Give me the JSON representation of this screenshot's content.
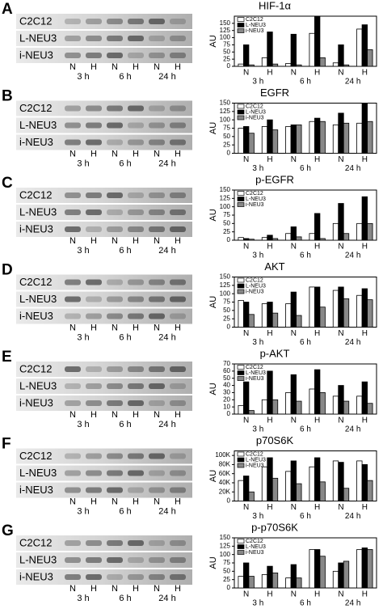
{
  "chart_data": [
    {
      "type": "bar",
      "panel": "A",
      "title": "HIF-1α",
      "ylabel": "AU",
      "blot_labels": [
        "C2C12",
        "L-NEU3",
        "i-NEU3"
      ],
      "categories": [
        "N",
        "H",
        "N",
        "H",
        "N",
        "H"
      ],
      "groups": [
        "3 h",
        "6 h",
        "24 h"
      ],
      "series": [
        {
          "name": "C2C12",
          "color": "#ffffff",
          "values": [
            8,
            30,
            10,
            115,
            12,
            130
          ]
        },
        {
          "name": "L-NEU3",
          "color": "#000000",
          "values": [
            75,
            120,
            112,
            175,
            75,
            145
          ]
        },
        {
          "name": "i-NEU3",
          "color": "#888888",
          "values": [
            5,
            8,
            5,
            30,
            5,
            58
          ]
        }
      ],
      "ylim": [
        0,
        175
      ],
      "yticks": [
        0,
        25,
        50,
        75,
        100,
        125,
        150
      ]
    },
    {
      "type": "bar",
      "panel": "B",
      "title": "EGFR",
      "ylabel": "AU",
      "blot_labels": [
        "C2C12",
        "L-NEU3",
        "i-NEU3"
      ],
      "categories": [
        "N",
        "H",
        "N",
        "H",
        "N",
        "H"
      ],
      "groups": [
        "3 h",
        "6 h",
        "24 h"
      ],
      "series": [
        {
          "name": "C2C12",
          "color": "#ffffff",
          "values": [
            75,
            80,
            80,
            95,
            85,
            90
          ]
        },
        {
          "name": "L-NEU3",
          "color": "#000000",
          "values": [
            80,
            100,
            85,
            105,
            120,
            150
          ]
        },
        {
          "name": "i-NEU3",
          "color": "#888888",
          "values": [
            60,
            70,
            85,
            95,
            90,
            95
          ]
        }
      ],
      "ylim": [
        0,
        150
      ],
      "yticks": [
        0,
        25,
        50,
        75,
        100,
        125,
        150
      ]
    },
    {
      "type": "bar",
      "panel": "C",
      "title": "p-EGFR",
      "ylabel": "AU",
      "blot_labels": [
        "C2C12",
        "L-NEU3",
        "i-NEU3"
      ],
      "categories": [
        "N",
        "H",
        "N",
        "H",
        "N",
        "H"
      ],
      "groups": [
        "3 h",
        "6 h",
        "24 h"
      ],
      "series": [
        {
          "name": "C2C12",
          "color": "#ffffff",
          "values": [
            8,
            8,
            20,
            20,
            50,
            50
          ]
        },
        {
          "name": "L-NEU3",
          "color": "#000000",
          "values": [
            5,
            15,
            40,
            80,
            110,
            130
          ]
        },
        {
          "name": "i-NEU3",
          "color": "#888888",
          "values": [
            3,
            5,
            10,
            5,
            20,
            50
          ]
        }
      ],
      "ylim": [
        0,
        150
      ],
      "yticks": [
        0,
        25,
        50,
        75,
        100,
        125,
        150
      ]
    },
    {
      "type": "bar",
      "panel": "D",
      "title": "AKT",
      "ylabel": "AU",
      "blot_labels": [
        "C2C12",
        "L-NEU3",
        "i-NEU3"
      ],
      "categories": [
        "N",
        "H",
        "N",
        "H",
        "N",
        "H"
      ],
      "groups": [
        "3 h",
        "6 h",
        "24 h"
      ],
      "series": [
        {
          "name": "C2C12",
          "color": "#ffffff",
          "values": [
            80,
            70,
            70,
            120,
            110,
            95
          ]
        },
        {
          "name": "L-NEU3",
          "color": "#000000",
          "values": [
            75,
            75,
            105,
            120,
            120,
            115
          ]
        },
        {
          "name": "i-NEU3",
          "color": "#888888",
          "values": [
            38,
            42,
            35,
            60,
            85,
            82
          ]
        }
      ],
      "ylim": [
        0,
        150
      ],
      "yticks": [
        0,
        25,
        50,
        75,
        100,
        125,
        150
      ]
    },
    {
      "type": "bar",
      "panel": "E",
      "title": "p-AKT",
      "ylabel": "AU",
      "blot_labels": [
        "C2C12",
        "L-NEU3",
        "i-NEU3"
      ],
      "categories": [
        "N",
        "H",
        "N",
        "H",
        "N",
        "H"
      ],
      "groups": [
        "3 h",
        "6 h",
        "24 h"
      ],
      "series": [
        {
          "name": "C2C12",
          "color": "#ffffff",
          "values": [
            12,
            20,
            30,
            35,
            25,
            25
          ]
        },
        {
          "name": "L-NEU3",
          "color": "#000000",
          "values": [
            45,
            60,
            55,
            62,
            40,
            45
          ]
        },
        {
          "name": "i-NEU3",
          "color": "#888888",
          "values": [
            5,
            20,
            18,
            30,
            18,
            15
          ]
        }
      ],
      "ylim": [
        0,
        70
      ],
      "yticks": [
        0,
        10,
        20,
        30,
        40,
        50,
        60,
        70
      ]
    },
    {
      "type": "bar",
      "panel": "F",
      "title": "p70S6K",
      "ylabel": "AU",
      "blot_labels": [
        "C2C12",
        "L-NEU3",
        "i-NEU3"
      ],
      "categories": [
        "N",
        "H",
        "N",
        "H",
        "N",
        "H"
      ],
      "groups": [
        "3 h",
        "6 h",
        "24 h"
      ],
      "series": [
        {
          "name": "C2C12",
          "color": "#ffffff",
          "values": [
            45000,
            75000,
            65000,
            75000,
            88000,
            88000
          ]
        },
        {
          "name": "L-NEU3",
          "color": "#000000",
          "values": [
            55000,
            95000,
            88000,
            95000,
            85000,
            80000
          ]
        },
        {
          "name": "i-NEU3",
          "color": "#888888",
          "values": [
            20000,
            50000,
            38000,
            42000,
            28000,
            45000
          ]
        }
      ],
      "ylim": [
        0,
        110000
      ],
      "yticks": [
        0,
        {
          "value": 20000,
          "label": "20K"
        },
        {
          "value": 40000,
          "label": "40K"
        },
        {
          "value": 60000,
          "label": "60K"
        },
        {
          "value": 80000,
          "label": "80K"
        },
        {
          "value": 100000,
          "label": "100K"
        }
      ]
    },
    {
      "type": "bar",
      "panel": "G",
      "title": "p-p70S6K",
      "ylabel": "AU",
      "blot_labels": [
        "C2C12",
        "L-NEU3",
        "i-NEU3"
      ],
      "categories": [
        "N",
        "H",
        "N",
        "H",
        "N",
        "H"
      ],
      "groups": [
        "3 h",
        "6 h",
        "24 h"
      ],
      "series": [
        {
          "name": "C2C12",
          "color": "#ffffff",
          "values": [
            35,
            40,
            30,
            115,
            50,
            115
          ]
        },
        {
          "name": "L-NEU3",
          "color": "#000000",
          "values": [
            75,
            65,
            70,
            115,
            75,
            120
          ]
        },
        {
          "name": "i-NEU3",
          "color": "#888888",
          "values": [
            35,
            45,
            30,
            95,
            80,
            115
          ]
        }
      ],
      "ylim": [
        0,
        150
      ],
      "yticks": [
        0,
        25,
        50,
        75,
        100,
        125,
        150
      ]
    }
  ]
}
